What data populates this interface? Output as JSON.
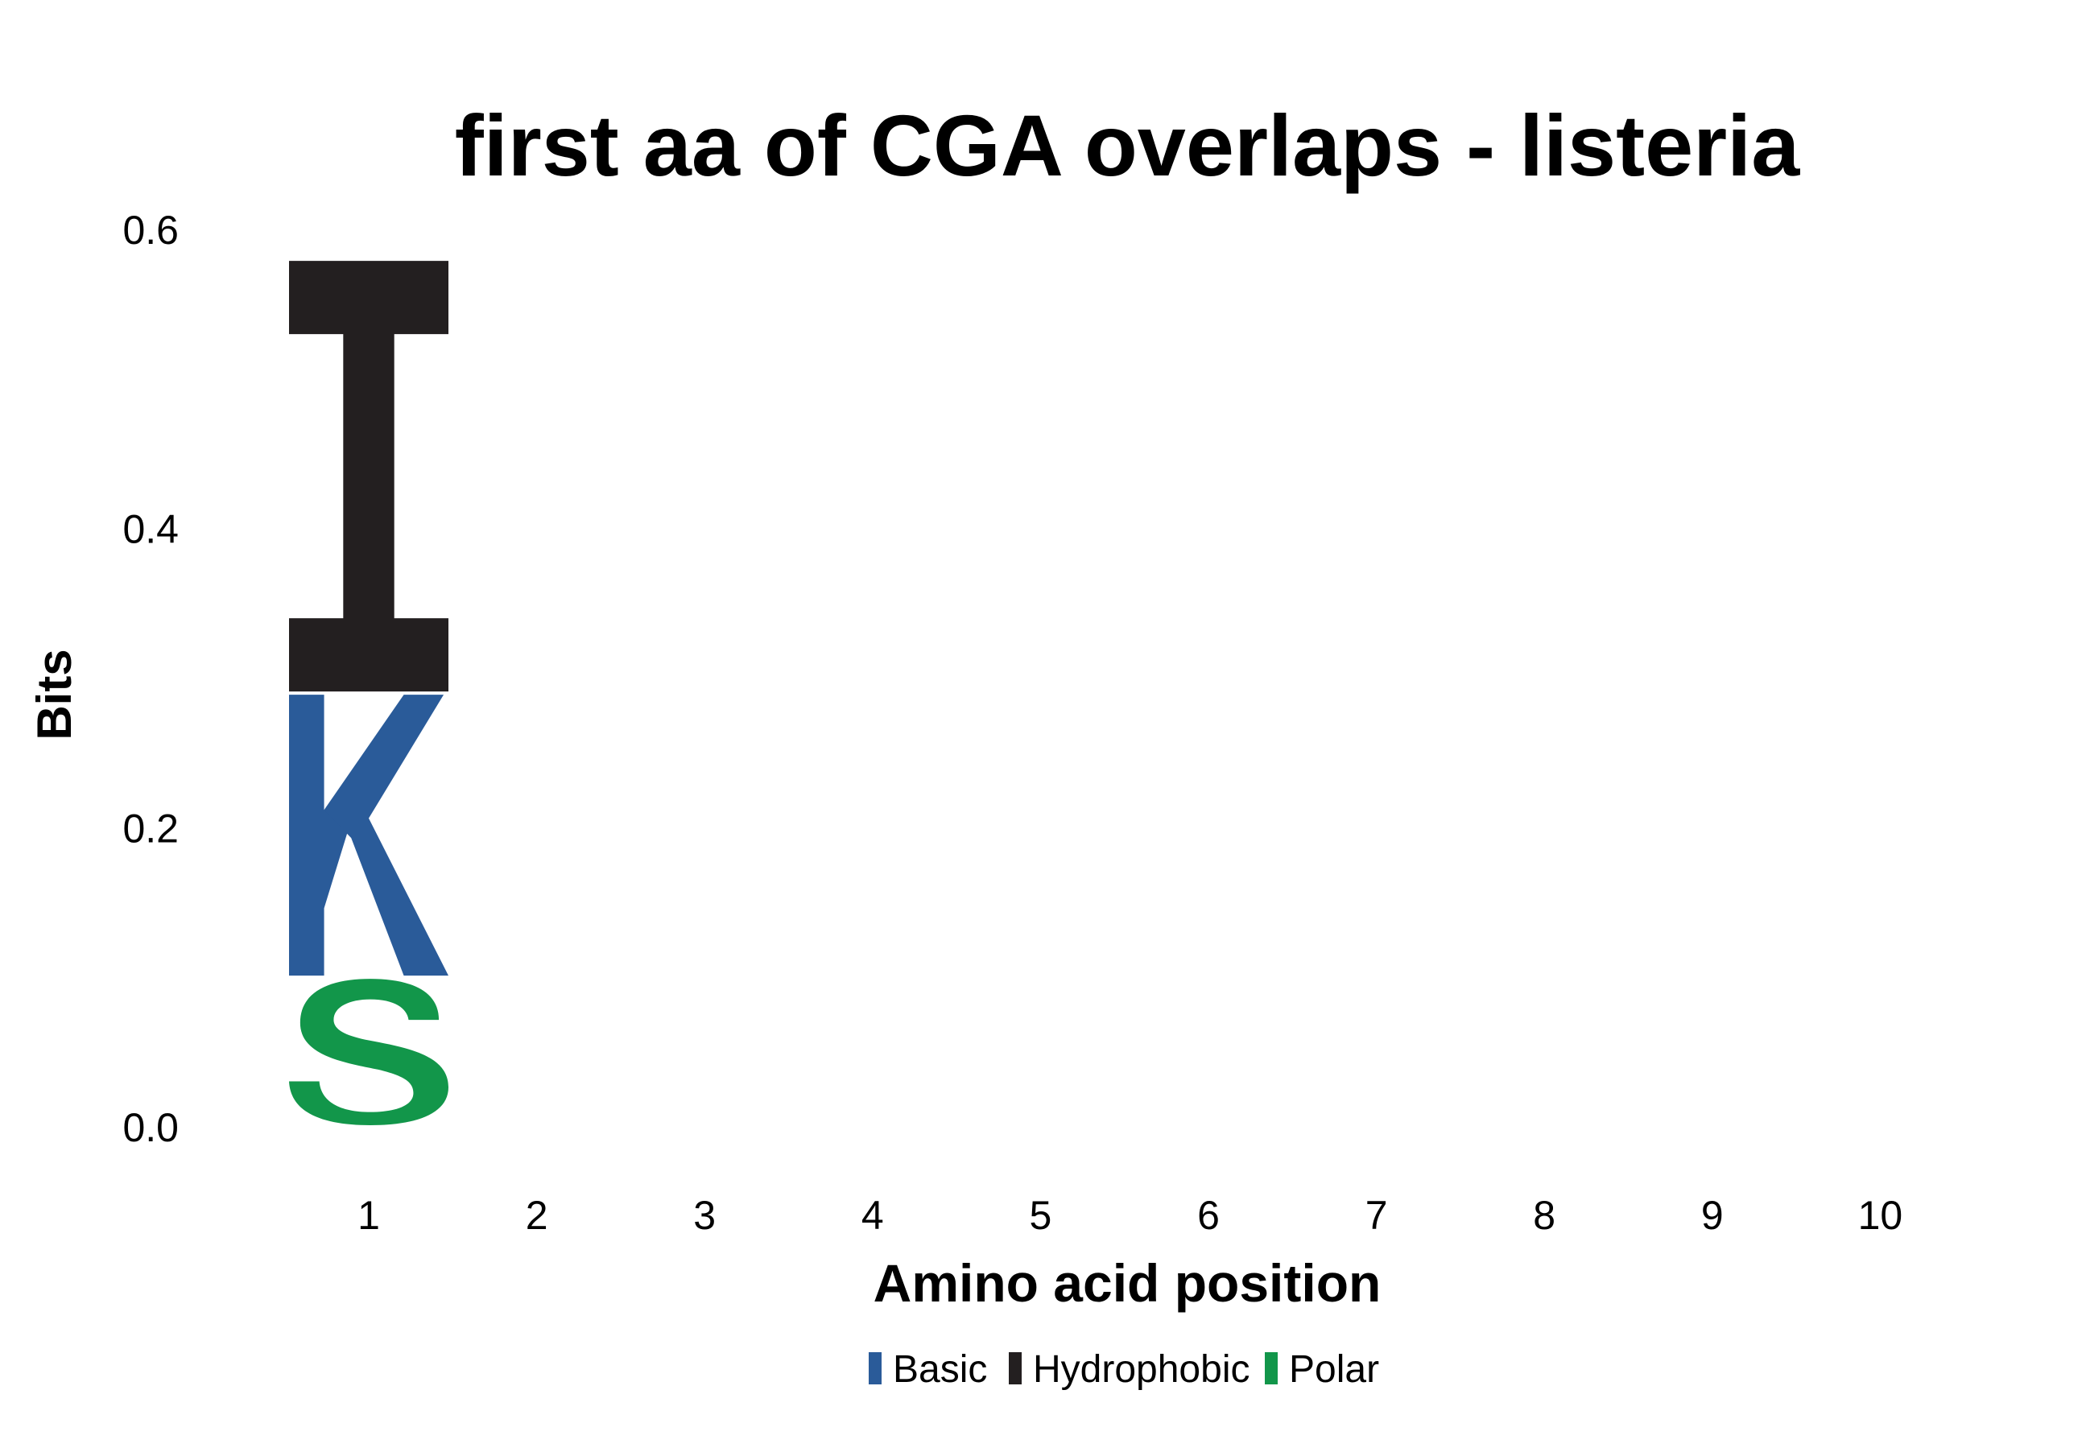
{
  "chart_data": {
    "type": "sequence-logo",
    "title": "first aa of CGA overlaps - listeria",
    "xlabel": "Amino acid position",
    "ylabel": "Bits",
    "categories": [
      "1",
      "2",
      "3",
      "4",
      "5",
      "6",
      "7",
      "8",
      "9",
      "10"
    ],
    "ylim": [
      0,
      0.6
    ],
    "yticks": [
      "0.0",
      "0.2",
      "0.4",
      "0.6"
    ],
    "grid": false,
    "legend_position": "bottom",
    "legend": [
      {
        "name": "Basic",
        "color": "#2a5b99"
      },
      {
        "name": "Hydrophobic",
        "color": "#231f20"
      },
      {
        "name": "Polar",
        "color": "#12964a"
      }
    ],
    "stacks": [
      {
        "position": "1",
        "letters": [
          {
            "letter": "S",
            "class": "Polar",
            "start": 0.0,
            "end": 0.1
          },
          {
            "letter": "K",
            "class": "Basic",
            "start": 0.1,
            "end": 0.29
          },
          {
            "letter": "I",
            "class": "Hydrophobic",
            "start": 0.29,
            "end": 0.58
          }
        ]
      }
    ]
  }
}
